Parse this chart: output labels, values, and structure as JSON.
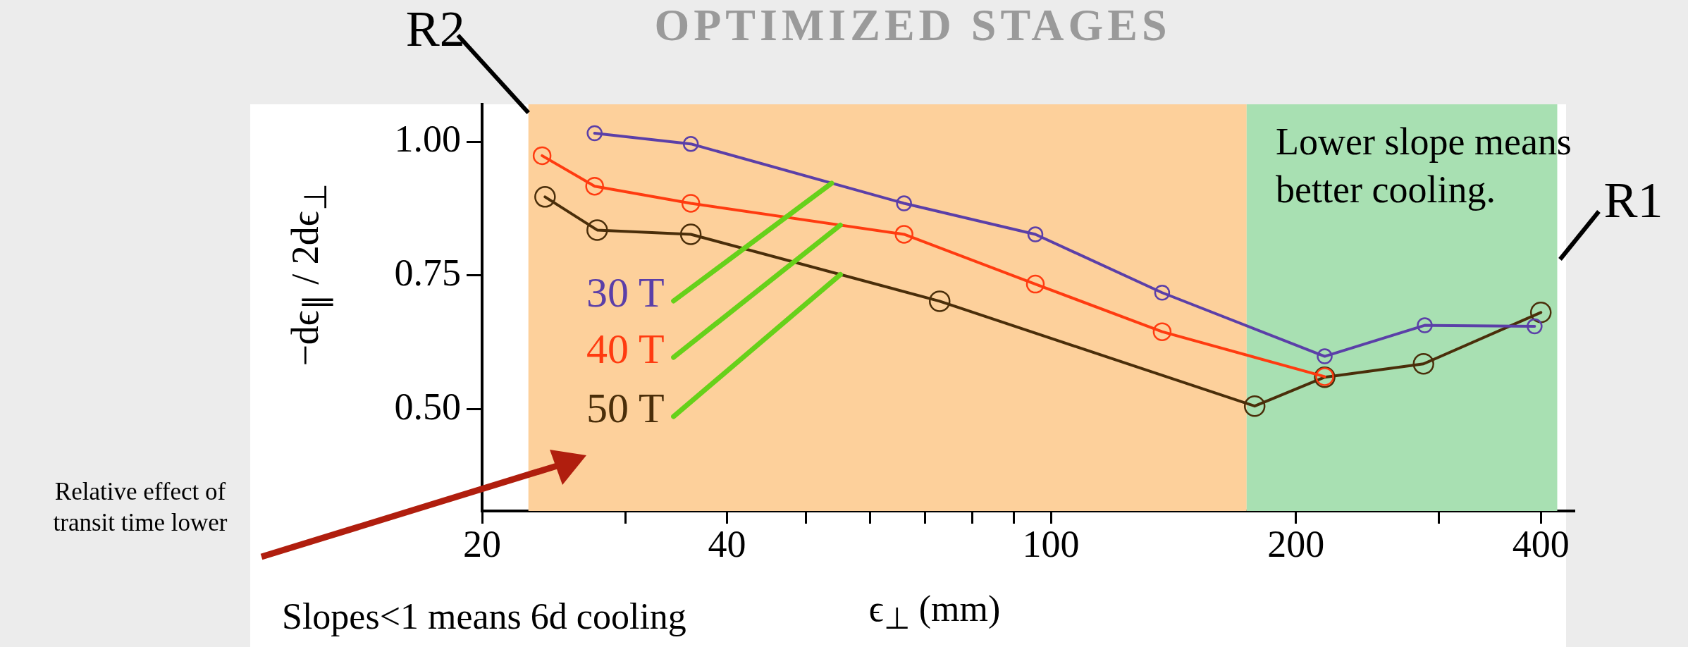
{
  "chart_data": {
    "type": "line",
    "title": "OPTIMIZED STAGES",
    "xlabel": "ϵ$_{⊥}$ (mm)",
    "ylabel": "−dϵ$_{∥}$ / 2dϵ$_{⊥}$",
    "log": "x",
    "xlim": [
      20,
      440
    ],
    "xticks": [
      20,
      {
        "value": 30,
        "label": null
      },
      40,
      {
        "value": 50,
        "label": null
      },
      {
        "value": 60,
        "label": null
      },
      {
        "value": 70,
        "label": null
      },
      {
        "value": 80,
        "label": null
      },
      {
        "value": 90,
        "label": null
      },
      100,
      200,
      {
        "value": 300,
        "label": null
      },
      400
    ],
    "ylim": [
      0.31,
      1.07
    ],
    "yticks": [
      {
        "value": 0.5,
        "label": "0.50"
      },
      {
        "value": 0.75,
        "label": "0.75"
      },
      {
        "value": 1,
        "label": "1.00"
      }
    ],
    "grid": false,
    "marker": "circle",
    "bands": [
      {
        "axis": "x",
        "from": 22.8,
        "to": 174,
        "label": "R2",
        "color": "#fdd09b"
      },
      {
        "axis": "x",
        "from": 174,
        "to": 419,
        "label": "R1",
        "color": "#a8e0b2"
      }
    ],
    "annotations": [
      "Lower slope means better cooling.",
      "Relative effect of transit time lower",
      "Slopes<1 means 6d cooling"
    ],
    "series": [
      {
        "name": "30 T",
        "color": "#5b3fa8",
        "x": [
          27.5,
          36.1,
          66,
          95.7,
          137,
          217,
          288,
          393
        ],
        "values": [
          1.016,
          0.996,
          0.885,
          0.827,
          0.718,
          0.599,
          0.657,
          0.655
        ]
      },
      {
        "name": "40 T",
        "color": "#ff3b10",
        "x": [
          23.7,
          27.5,
          36.1,
          66,
          95.7,
          137,
          217
        ],
        "values": [
          0.974,
          0.917,
          0.885,
          0.827,
          0.734,
          0.645,
          0.561
        ]
      },
      {
        "name": "50 T",
        "color": "#4a2e0a",
        "x": [
          23.9,
          27.7,
          36.1,
          73,
          178,
          217,
          287,
          400
        ],
        "values": [
          0.897,
          0.835,
          0.827,
          0.702,
          0.506,
          0.56,
          0.585,
          0.681
        ]
      }
    ]
  }
}
